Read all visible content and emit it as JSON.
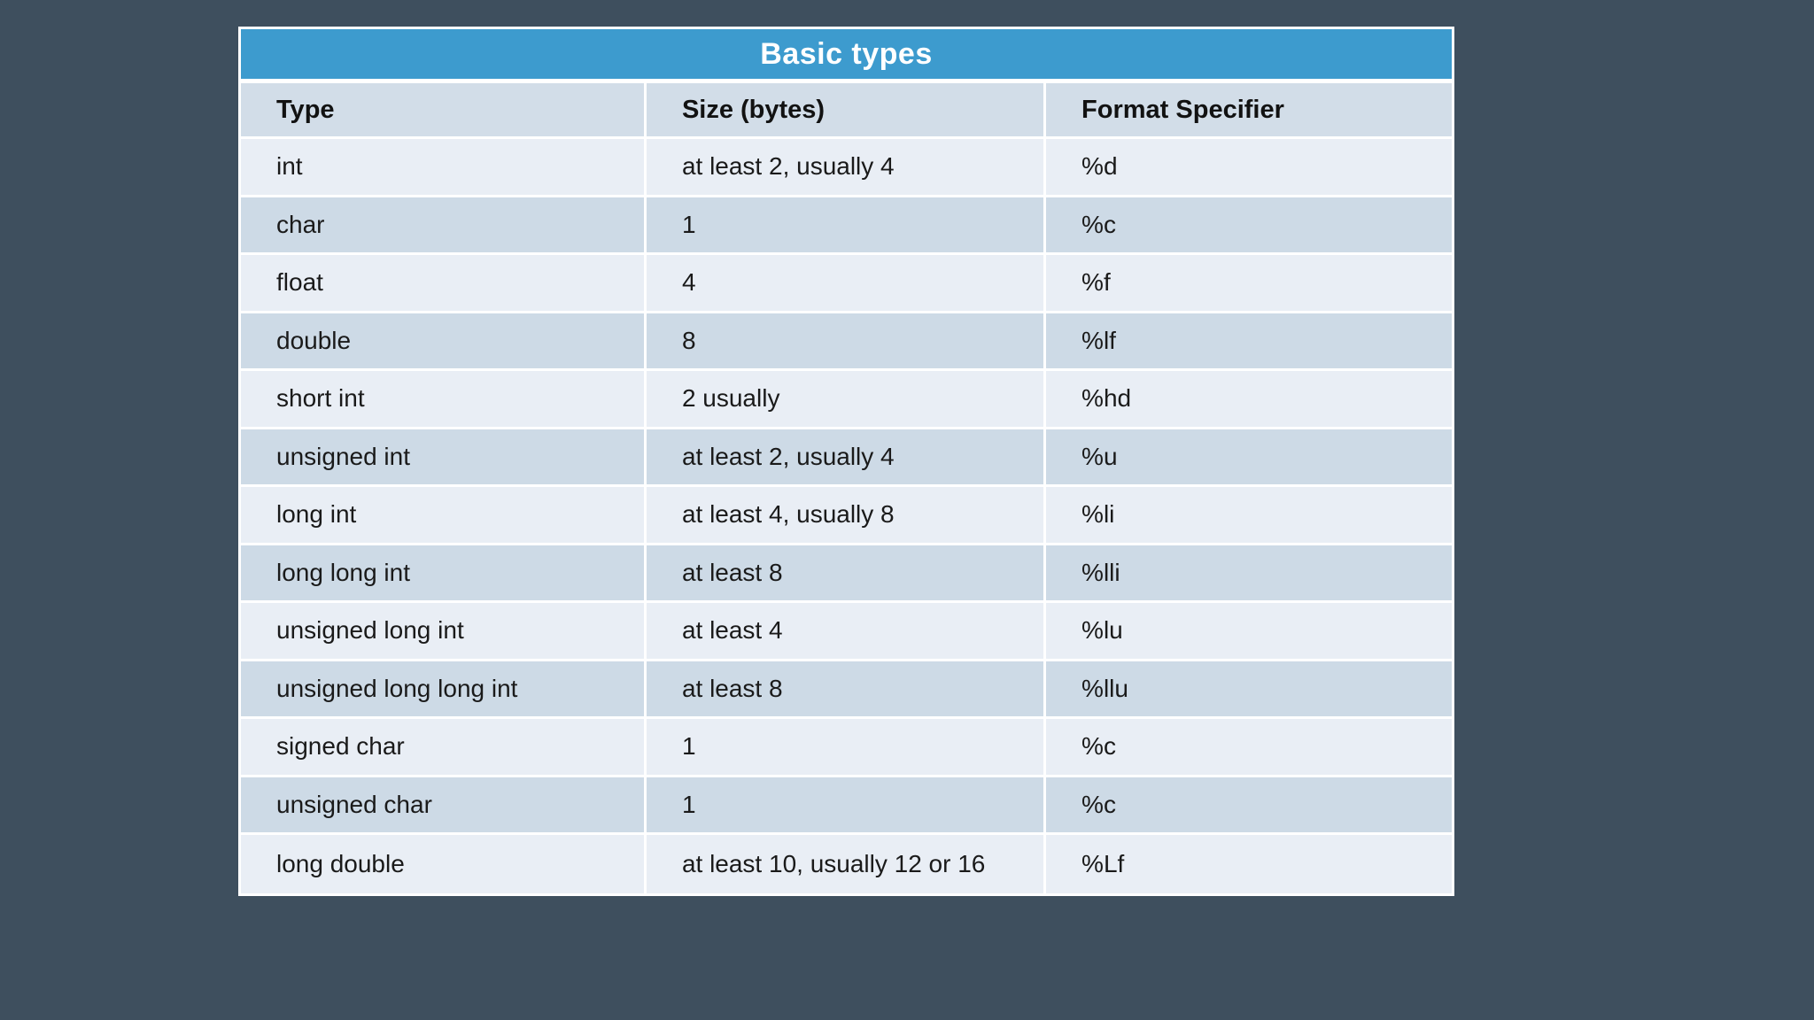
{
  "title": "Basic types",
  "colors": {
    "background": "#3E4F5E",
    "title_bar": "#3D9BCE",
    "title_text": "#FFFFFF",
    "header_row": "#D2DDE8",
    "row_light": "#E9EEF5",
    "row_dark": "#CDDAE6",
    "border": "#FFFFFF",
    "cell_text": "#1A1A1A"
  },
  "table": {
    "columns": [
      "Type",
      "Size (bytes)",
      "Format Specifier"
    ],
    "rows": [
      {
        "type": "int",
        "size": "at least 2, usually 4",
        "format": "%d"
      },
      {
        "type": "char",
        "size": "1",
        "format": "%c"
      },
      {
        "type": "float",
        "size": "4",
        "format": "%f"
      },
      {
        "type": "double",
        "size": "8",
        "format": "%lf"
      },
      {
        "type": "short int",
        "size": "2 usually",
        "format": "%hd"
      },
      {
        "type": "unsigned int",
        "size": "at least 2, usually 4",
        "format": "%u"
      },
      {
        "type": "long int",
        "size": "at least 4, usually 8",
        "format": "%li"
      },
      {
        "type": "long long int",
        "size": "at least 8",
        "format": "%lli"
      },
      {
        "type": "unsigned long int",
        "size": "at least 4",
        "format": "%lu"
      },
      {
        "type": "unsigned long long int",
        "size": "at least 8",
        "format": "%llu"
      },
      {
        "type": "signed char",
        "size": "1",
        "format": "%c"
      },
      {
        "type": "unsigned char",
        "size": "1",
        "format": "%c"
      },
      {
        "type": "long double",
        "size": "at least 10, usually 12 or 16",
        "format": "%Lf"
      }
    ]
  }
}
